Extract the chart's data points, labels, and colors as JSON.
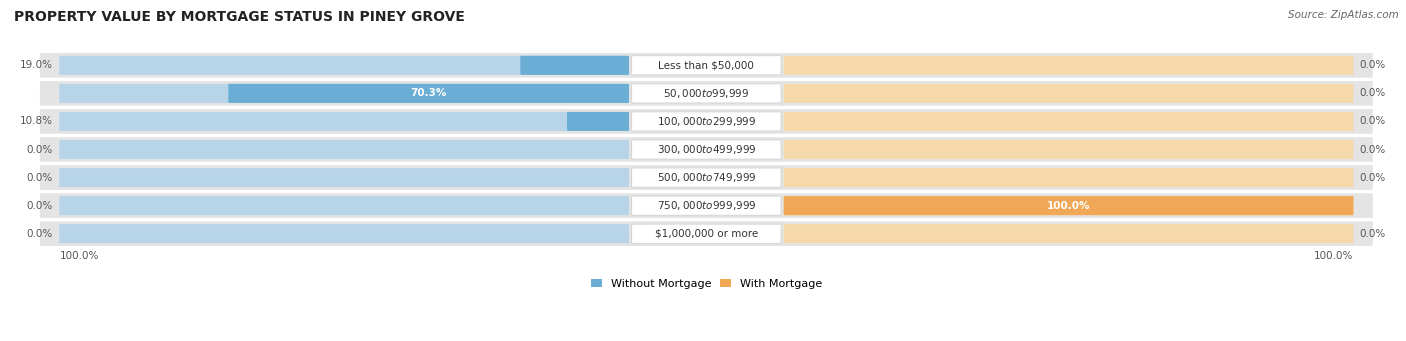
{
  "title": "PROPERTY VALUE BY MORTGAGE STATUS IN PINEY GROVE",
  "source": "Source: ZipAtlas.com",
  "categories": [
    "Less than $50,000",
    "$50,000 to $99,999",
    "$100,000 to $299,999",
    "$300,000 to $499,999",
    "$500,000 to $749,999",
    "$750,000 to $999,999",
    "$1,000,000 or more"
  ],
  "without_mortgage": [
    19.0,
    70.3,
    10.8,
    0.0,
    0.0,
    0.0,
    0.0
  ],
  "with_mortgage": [
    0.0,
    0.0,
    0.0,
    0.0,
    0.0,
    100.0,
    0.0
  ],
  "color_without": "#6aaed6",
  "color_with": "#f0a857",
  "bg_row": "#e4e4e4",
  "bar_bg_without": "#b8d4e8",
  "bar_bg_with": "#f5d9aa",
  "title_fontsize": 10,
  "source_fontsize": 7.5,
  "label_fontsize": 7.5,
  "category_fontsize": 7.5,
  "legend_fontsize": 8,
  "axis_label_fontsize": 7.5,
  "left_axis_label": "100.0%",
  "right_axis_label": "100.0%"
}
